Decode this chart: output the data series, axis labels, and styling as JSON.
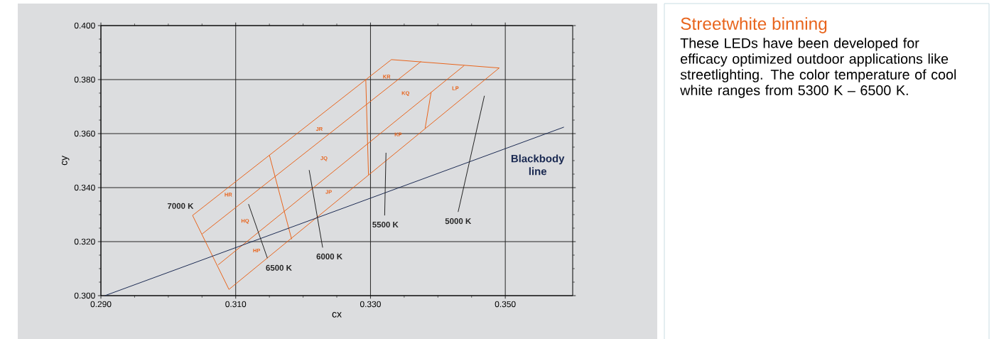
{
  "chart_data": {
    "type": "line",
    "title": "Streetwhite binning",
    "subtitle": "These LEDs have been developed for efficacy optimized outdoor applications like streetlighting. The color temperature of cool white ranges from 5300 K – 6500 K.",
    "xlabel": "cx",
    "ylabel": "cy",
    "xlim": [
      0.29,
      0.36
    ],
    "ylim": [
      0.3,
      0.4
    ],
    "xticks": [
      {
        "value": 0.29,
        "label": "0.290"
      },
      {
        "value": 0.31,
        "label": "0.310"
      },
      {
        "value": 0.33,
        "label": "0.330"
      },
      {
        "value": 0.35,
        "label": "0.350"
      }
    ],
    "yticks": [
      {
        "value": 0.3,
        "label": "0.300"
      },
      {
        "value": 0.32,
        "label": "0.320"
      },
      {
        "value": 0.34,
        "label": "0.340"
      },
      {
        "value": 0.36,
        "label": "0.360"
      },
      {
        "value": 0.38,
        "label": "0.380"
      },
      {
        "value": 0.4,
        "label": "0.400"
      }
    ],
    "grid": true,
    "marker": "none",
    "line_style": "solid",
    "series": [
      {
        "color": "#e8641c",
        "x": [
          0.3036,
          0.309,
          null,
          0.309,
          0.3491,
          null,
          0.3491,
          0.3331,
          null,
          0.3331,
          0.3036,
          null,
          0.305,
          0.3375,
          null,
          0.3074,
          0.3439,
          null,
          0.315,
          0.3183,
          null,
          0.3293,
          0.3297,
          null,
          0.339,
          0.3381
        ],
        "values": [
          0.3297,
          0.3023,
          null,
          0.3023,
          0.3843,
          null,
          0.3843,
          0.3874,
          null,
          0.3874,
          0.3297,
          null,
          0.3228,
          0.3867,
          null,
          0.3114,
          0.3852,
          null,
          0.352,
          0.3209,
          null,
          0.3801,
          0.3448,
          null,
          0.3753,
          0.3619
        ]
      },
      {
        "name": "Blackbody line",
        "color": "#1b2a52",
        "x": [
          0.2906,
          0.3587
        ],
        "values": [
          0.3,
          0.3624
        ]
      },
      {
        "color": "#222222",
        "x": [
          0.3119,
          0.3147,
          null,
          0.3209,
          0.3229,
          null,
          0.3323,
          0.3321,
          null,
          0.3469,
          0.343
        ],
        "values": [
          0.3339,
          0.3139,
          null,
          0.3465,
          0.3178,
          null,
          0.3529,
          0.3297,
          null,
          0.374,
          0.331
        ]
      }
    ],
    "annotations": [
      "KR",
      "KQ",
      "LP",
      "JR",
      "KP",
      "JQ",
      "JP",
      "HR",
      "HQ",
      "HP",
      "7000 K",
      "6500 K",
      "6000 K",
      "5500 K",
      "5000 K"
    ]
  }
}
